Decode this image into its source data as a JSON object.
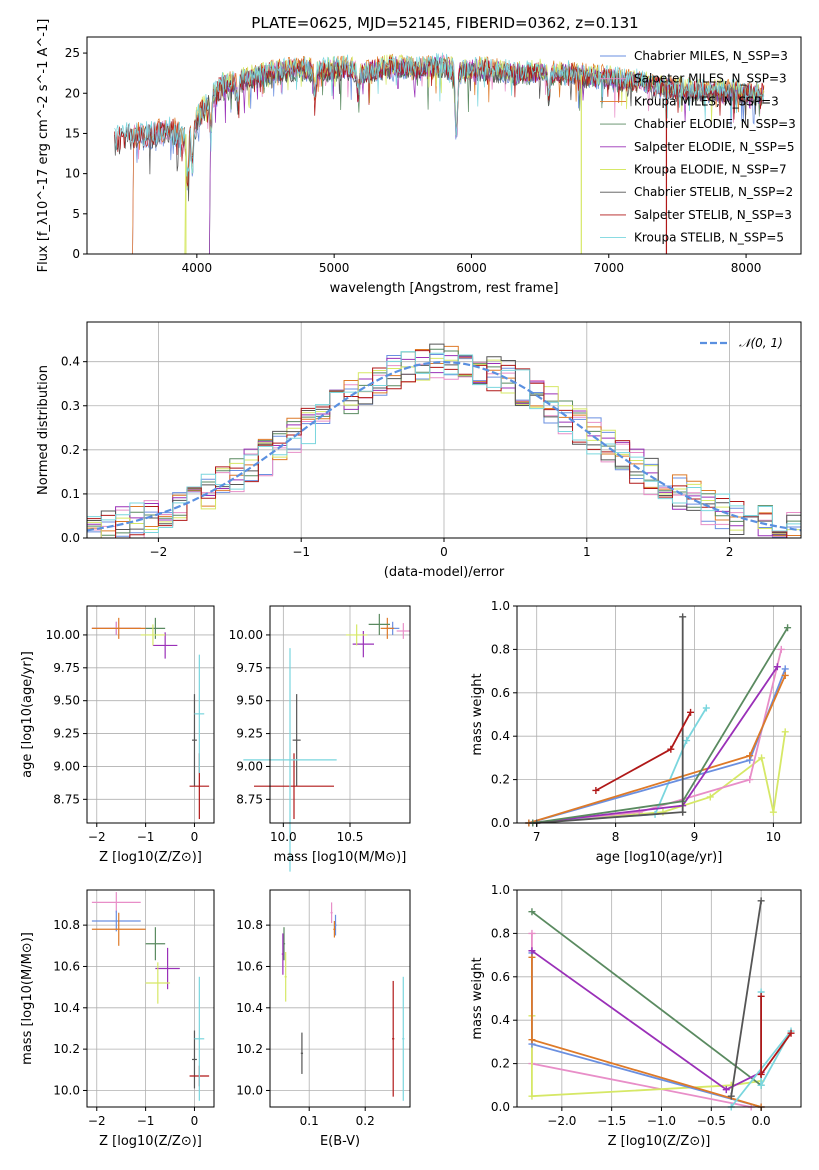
{
  "colors": {
    "chabrier_miles": "#6a8fe0",
    "salpeter_miles": "#e88ec8",
    "kroupa_miles": "#de7a28",
    "chabrier_elodie": "#5a8a60",
    "salpeter_elodie": "#9a30b8",
    "kroupa_elodie": "#d6e866",
    "chabrier_stelib": "#555555",
    "salpeter_stelib": "#b01818",
    "kroupa_stelib": "#7ad6de",
    "normal_curve": "#5a90e0",
    "grid": "#b0b0b0"
  },
  "chart_data": [
    {
      "id": "spectrum",
      "type": "line",
      "title": "PLATE=0625, MJD=52145, FIBERID=0362, z=0.131",
      "xlabel": "wavelength [Angstrom, rest frame]",
      "ylabel": "Flux [f_λ10^-17 erg cm^-2 s^-1 A^-1]",
      "xlim": [
        3200,
        8400
      ],
      "ylim": [
        0,
        27
      ],
      "xticks": [
        4000,
        5000,
        6000,
        7000,
        8000
      ],
      "yticks": [
        0,
        5,
        10,
        15,
        20,
        25
      ],
      "grid": false,
      "legend": "upper right",
      "series": [
        {
          "name": "Chabrier MILES, N_SSP=3",
          "color_key": "chabrier_miles",
          "start": 3540
        },
        {
          "name": "Salpeter MILES, N_SSP=3",
          "color_key": "salpeter_miles",
          "start": 3540
        },
        {
          "name": "Kroupa MILES, N_SSP=3",
          "color_key": "kroupa_miles",
          "start": 3540
        },
        {
          "name": "Chabrier ELODIE, N_SSP=3",
          "color_key": "chabrier_elodie",
          "start": 4100
        },
        {
          "name": "Salpeter ELODIE, N_SSP=5",
          "color_key": "salpeter_elodie",
          "start": 4100
        },
        {
          "name": "Kroupa ELODIE, N_SSP=7",
          "color_key": "kroupa_elodie",
          "start": 3920
        },
        {
          "name": "Chabrier STELIB, N_SSP=2",
          "color_key": "chabrier_stelib",
          "start": 3400
        },
        {
          "name": "Salpeter STELIB, N_SSP=3",
          "color_key": "salpeter_stelib",
          "start": 3400
        },
        {
          "name": "Kroupa STELIB, N_SSP=5",
          "color_key": "kroupa_stelib",
          "start": 3400
        }
      ],
      "continuum": [
        [
          3400,
          14.0
        ],
        [
          3500,
          14.8
        ],
        [
          3600,
          14.5
        ],
        [
          3700,
          15.0
        ],
        [
          3800,
          15.5
        ],
        [
          3900,
          14.5
        ],
        [
          4000,
          16.5
        ],
        [
          4100,
          19.5
        ],
        [
          4200,
          21.0
        ],
        [
          4300,
          21.5
        ],
        [
          4400,
          22.0
        ],
        [
          4500,
          22.5
        ],
        [
          4600,
          22.8
        ],
        [
          4700,
          23.0
        ],
        [
          4800,
          23.0
        ],
        [
          4900,
          22.8
        ],
        [
          5000,
          23.0
        ],
        [
          5100,
          23.2
        ],
        [
          5200,
          22.5
        ],
        [
          5300,
          23.0
        ],
        [
          5400,
          23.3
        ],
        [
          5500,
          23.3
        ],
        [
          5600,
          23.0
        ],
        [
          5700,
          23.3
        ],
        [
          5800,
          23.5
        ],
        [
          5900,
          22.5
        ],
        [
          6000,
          23.0
        ],
        [
          6100,
          23.0
        ],
        [
          6200,
          22.8
        ],
        [
          6300,
          22.5
        ],
        [
          6400,
          22.5
        ],
        [
          6500,
          22.7
        ],
        [
          6600,
          22.5
        ],
        [
          6700,
          22.6
        ],
        [
          6800,
          22.3
        ],
        [
          6900,
          22.0
        ],
        [
          7000,
          22.0
        ],
        [
          7100,
          21.5
        ],
        [
          7200,
          21.5
        ],
        [
          7300,
          21.0
        ],
        [
          7400,
          20.8
        ],
        [
          7500,
          20.5
        ],
        [
          7600,
          20.3
        ],
        [
          7700,
          20.3
        ],
        [
          7800,
          20.2
        ],
        [
          7900,
          20.2
        ],
        [
          8000,
          20.0
        ],
        [
          8100,
          20.0
        ],
        [
          8130,
          20.0
        ]
      ],
      "absorption_lines": [
        [
          3933,
          -6
        ],
        [
          3968,
          -5
        ],
        [
          4102,
          -4
        ],
        [
          4300,
          -3
        ],
        [
          4861,
          -3
        ],
        [
          5175,
          -3
        ],
        [
          5890,
          -8
        ],
        [
          6563,
          -3
        ]
      ],
      "cutoffs": [
        {
          "color_key": "kroupa_elodie",
          "x": 3920
        },
        {
          "color_key": "kroupa_elodie",
          "x": 6800
        },
        {
          "color_key": "salpeter_stelib",
          "x": 7420
        }
      ]
    },
    {
      "id": "residuals",
      "type": "histogram",
      "xlabel": "(data-model)/error",
      "ylabel": "Normed distribution",
      "xlim": [
        -2.5,
        2.5
      ],
      "ylim": [
        0,
        0.49
      ],
      "xticks": [
        -2,
        -1,
        0,
        1,
        2
      ],
      "yticks": [
        0.0,
        0.1,
        0.2,
        0.3,
        0.4
      ],
      "grid": true,
      "legend": "upper right",
      "reference_curve": {
        "name": "𝒩(0, 1)",
        "mean": 0,
        "sigma": 1
      },
      "bin_width": 0.1,
      "bin_start": -2.5,
      "series_order": [
        "chabrier_miles",
        "salpeter_miles",
        "kroupa_miles",
        "chabrier_elodie",
        "salpeter_elodie",
        "kroupa_elodie",
        "chabrier_stelib",
        "salpeter_stelib",
        "kroupa_stelib"
      ]
    },
    {
      "id": "age_vs_z",
      "type": "errorbar",
      "xlabel": "Z [log10(Z/Z⊙)]",
      "ylabel": "age [log10(age/yr)]",
      "xlim": [
        -2.2,
        0.4
      ],
      "ylim": [
        8.57,
        10.22
      ],
      "xticks": [
        -2,
        -1,
        0
      ],
      "yticks": [
        8.75,
        9.0,
        9.25,
        9.5,
        9.75,
        10.0
      ],
      "grid": true,
      "points": [
        {
          "c": "chabrier_miles",
          "x": -1.6,
          "xerr": 0.5,
          "y": 10.05,
          "yerr": 0.05
        },
        {
          "c": "salpeter_miles",
          "x": -1.6,
          "xerr": 0.5,
          "y": 10.05,
          "yerr": 0.05
        },
        {
          "c": "kroupa_miles",
          "x": -1.55,
          "xerr": 0.55,
          "y": 10.05,
          "yerr": 0.08
        },
        {
          "c": "chabrier_elodie",
          "x": -0.8,
          "xerr": 0.2,
          "y": 10.05,
          "yerr": 0.08
        },
        {
          "c": "salpeter_elodie",
          "x": -0.6,
          "xerr": 0.25,
          "y": 9.92,
          "yerr": 0.1
        },
        {
          "c": "kroupa_elodie",
          "x": -0.85,
          "xerr": 0.25,
          "y": 10.0,
          "yerr": 0.08
        },
        {
          "c": "chabrier_stelib",
          "x": 0.0,
          "xerr": 0.05,
          "y": 9.2,
          "yerr": 0.35
        },
        {
          "c": "salpeter_stelib",
          "x": 0.1,
          "xerr": 0.2,
          "y": 8.85,
          "yerr": 0.25
        },
        {
          "c": "kroupa_stelib",
          "x": 0.1,
          "xerr": 0.1,
          "y": 9.4,
          "yerr": 0.45
        }
      ]
    },
    {
      "id": "age_vs_mass",
      "type": "errorbar",
      "xlabel": "mass [log10(M/M⊙)]",
      "ylabel": "",
      "xlim": [
        9.9,
        10.95
      ],
      "ylim": [
        8.57,
        10.22
      ],
      "xticks": [
        10.0,
        10.5
      ],
      "yticks": [
        8.75,
        9.0,
        9.25,
        9.5,
        9.75,
        10.0
      ],
      "grid": true,
      "points": [
        {
          "c": "chabrier_miles",
          "x": 10.82,
          "xerr": 0.05,
          "y": 10.05,
          "yerr": 0.05
        },
        {
          "c": "salpeter_miles",
          "x": 10.9,
          "xerr": 0.05,
          "y": 10.03,
          "yerr": 0.06
        },
        {
          "c": "kroupa_miles",
          "x": 10.78,
          "xerr": 0.05,
          "y": 10.05,
          "yerr": 0.08
        },
        {
          "c": "chabrier_elodie",
          "x": 10.72,
          "xerr": 0.08,
          "y": 10.08,
          "yerr": 0.08
        },
        {
          "c": "salpeter_elodie",
          "x": 10.6,
          "xerr": 0.08,
          "y": 9.93,
          "yerr": 0.1
        },
        {
          "c": "kroupa_elodie",
          "x": 10.55,
          "xerr": 0.08,
          "y": 10.0,
          "yerr": 0.08
        },
        {
          "c": "chabrier_stelib",
          "x": 10.1,
          "xerr": 0.03,
          "y": 9.2,
          "yerr": 0.35
        },
        {
          "c": "salpeter_stelib",
          "x": 10.08,
          "xerr": 0.3,
          "y": 8.85,
          "yerr": 0.25
        },
        {
          "c": "kroupa_stelib",
          "x": 10.05,
          "xerr": 0.35,
          "y": 9.05,
          "yerr": 0.85
        }
      ]
    },
    {
      "id": "massweight_vs_age",
      "type": "line",
      "xlabel": "age [log10(age/yr)]",
      "ylabel": "mass weight",
      "xlim": [
        6.75,
        10.35
      ],
      "ylim": [
        0,
        1.0
      ],
      "xticks": [
        7,
        8,
        9,
        10
      ],
      "yticks": [
        0.0,
        0.2,
        0.4,
        0.6,
        0.8,
        1.0
      ],
      "grid": true,
      "series": [
        {
          "c": "kroupa_elodie",
          "pts": [
            [
              6.9,
              0
            ],
            [
              8.6,
              0.05
            ],
            [
              9.2,
              0.12
            ],
            [
              9.85,
              0.3
            ],
            [
              10.0,
              0.05
            ],
            [
              10.15,
              0.42
            ]
          ]
        },
        {
          "c": "salpeter_miles",
          "pts": [
            [
              6.9,
              0
            ],
            [
              8.3,
              0.05
            ],
            [
              9.7,
              0.2
            ],
            [
              10.1,
              0.8
            ]
          ]
        },
        {
          "c": "kroupa_stelib",
          "pts": [
            [
              6.9,
              0
            ],
            [
              8.5,
              0.04
            ],
            [
              8.9,
              0.38
            ],
            [
              9.15,
              0.53
            ]
          ]
        },
        {
          "c": "chabrier_miles",
          "pts": [
            [
              6.9,
              0
            ],
            [
              9.7,
              0.29
            ],
            [
              10.15,
              0.71
            ]
          ]
        },
        {
          "c": "kroupa_miles",
          "pts": [
            [
              6.9,
              0
            ],
            [
              9.7,
              0.31
            ],
            [
              10.15,
              0.68
            ]
          ]
        },
        {
          "c": "salpeter_elodie",
          "pts": [
            [
              6.95,
              0
            ],
            [
              8.85,
              0.08
            ],
            [
              10.05,
              0.72
            ]
          ]
        },
        {
          "c": "chabrier_elodie",
          "pts": [
            [
              6.95,
              0
            ],
            [
              8.85,
              0.1
            ],
            [
              10.18,
              0.9
            ]
          ]
        },
        {
          "c": "chabrier_stelib",
          "pts": [
            [
              7.0,
              0
            ],
            [
              8.85,
              0.05
            ],
            [
              8.85,
              0.05
            ],
            [
              8.85,
              0.95
            ]
          ]
        },
        {
          "c": "salpeter_stelib",
          "pts": [
            [
              7.75,
              0.15
            ],
            [
              8.7,
              0.34
            ],
            [
              8.95,
              0.51
            ]
          ]
        }
      ]
    },
    {
      "id": "mass_vs_z",
      "type": "errorbar",
      "xlabel": "Z [log10(Z/Z⊙)]",
      "ylabel": "mass [log10(M/M⊙)]",
      "xlim": [
        -2.2,
        0.4
      ],
      "ylim": [
        9.92,
        10.97
      ],
      "xticks": [
        -2,
        -1,
        0
      ],
      "yticks": [
        10.0,
        10.2,
        10.4,
        10.6,
        10.8
      ],
      "grid": true,
      "points": [
        {
          "c": "salpeter_miles",
          "x": -1.6,
          "xerr": 0.5,
          "y": 10.91,
          "yerr": 0.05
        },
        {
          "c": "chabrier_miles",
          "x": -1.6,
          "xerr": 0.5,
          "y": 10.82,
          "yerr": 0.05
        },
        {
          "c": "kroupa_miles",
          "x": -1.55,
          "xerr": 0.55,
          "y": 10.78,
          "yerr": 0.08
        },
        {
          "c": "chabrier_elodie",
          "x": -0.8,
          "xerr": 0.2,
          "y": 10.71,
          "yerr": 0.08
        },
        {
          "c": "salpeter_elodie",
          "x": -0.55,
          "xerr": 0.25,
          "y": 10.59,
          "yerr": 0.1
        },
        {
          "c": "kroupa_elodie",
          "x": -0.75,
          "xerr": 0.25,
          "y": 10.52,
          "yerr": 0.1
        },
        {
          "c": "chabrier_stelib",
          "x": 0.0,
          "xerr": 0.05,
          "y": 10.15,
          "yerr": 0.14
        },
        {
          "c": "salpeter_stelib",
          "x": 0.1,
          "xerr": 0.2,
          "y": 10.07,
          "yerr": 0.05
        },
        {
          "c": "kroupa_stelib",
          "x": 0.1,
          "xerr": 0.1,
          "y": 10.25,
          "yerr": 0.3
        }
      ]
    },
    {
      "id": "mass_vs_ebv",
      "type": "errorbar",
      "xlabel": "E(B-V)",
      "ylabel": "",
      "xlim": [
        0.03,
        0.28
      ],
      "ylim": [
        9.92,
        10.97
      ],
      "xticks": [
        0.1,
        0.2
      ],
      "yticks": [
        10.0,
        10.2,
        10.4,
        10.6,
        10.8
      ],
      "grid": true,
      "points": [
        {
          "c": "salpeter_miles",
          "x": 0.14,
          "xerr": 0.002,
          "y": 10.86,
          "yerr": 0.05
        },
        {
          "c": "chabrier_miles",
          "x": 0.147,
          "xerr": 0.002,
          "y": 10.8,
          "yerr": 0.05
        },
        {
          "c": "kroupa_miles",
          "x": 0.145,
          "xerr": 0.002,
          "y": 10.78,
          "yerr": 0.04
        },
        {
          "c": "chabrier_elodie",
          "x": 0.055,
          "xerr": 0.002,
          "y": 10.71,
          "yerr": 0.08
        },
        {
          "c": "salpeter_elodie",
          "x": 0.053,
          "xerr": 0.002,
          "y": 10.66,
          "yerr": 0.1
        },
        {
          "c": "kroupa_elodie",
          "x": 0.058,
          "xerr": 0.002,
          "y": 10.55,
          "yerr": 0.12
        },
        {
          "c": "chabrier_stelib",
          "x": 0.087,
          "xerr": 0.002,
          "y": 10.18,
          "yerr": 0.1
        },
        {
          "c": "salpeter_stelib",
          "x": 0.25,
          "xerr": 0.002,
          "y": 10.25,
          "yerr": 0.28
        },
        {
          "c": "kroupa_stelib",
          "x": 0.268,
          "xerr": 0.002,
          "y": 10.25,
          "yerr": 0.3
        }
      ]
    },
    {
      "id": "massweight_vs_z",
      "type": "line",
      "xlabel": "Z [log10(Z/Z⊙)]",
      "ylabel": "mass weight",
      "xlim": [
        -2.45,
        0.4
      ],
      "ylim": [
        0,
        1.0
      ],
      "xticks": [
        -2.0,
        -1.5,
        -1.0,
        -0.5,
        0.0
      ],
      "yticks": [
        0.0,
        0.2,
        0.4,
        0.6,
        0.8,
        1.0
      ],
      "grid": true,
      "series": [
        {
          "c": "salpeter_miles",
          "pts": [
            [
              -2.3,
              0.8
            ],
            [
              -2.3,
              0.2
            ],
            [
              -0.1,
              0.0
            ]
          ]
        },
        {
          "c": "kroupa_elodie",
          "pts": [
            [
              -2.3,
              0.42
            ],
            [
              -2.3,
              0.05
            ],
            [
              -0.3,
              0.1
            ],
            [
              0.0,
              0.12
            ]
          ]
        },
        {
          "c": "chabrier_miles",
          "pts": [
            [
              -2.3,
              0.71
            ],
            [
              -2.3,
              0.29
            ],
            [
              0.0,
              0.0
            ]
          ]
        },
        {
          "c": "kroupa_miles",
          "pts": [
            [
              -2.3,
              0.69
            ],
            [
              -2.3,
              0.31
            ],
            [
              0.0,
              0.0
            ]
          ]
        },
        {
          "c": "chabrier_elodie",
          "pts": [
            [
              -2.3,
              0.9
            ],
            [
              0.0,
              0.1
            ]
          ]
        },
        {
          "c": "salpeter_elodie",
          "pts": [
            [
              -2.3,
              0.72
            ],
            [
              -0.35,
              0.08
            ],
            [
              0.0,
              0.16
            ]
          ]
        },
        {
          "c": "kroupa_stelib",
          "pts": [
            [
              0.0,
              0.53
            ],
            [
              0.0,
              0.1
            ],
            [
              0.3,
              0.35
            ],
            [
              -0.3,
              0.0
            ]
          ]
        },
        {
          "c": "salpeter_stelib",
          "pts": [
            [
              0.0,
              0.51
            ],
            [
              0.0,
              0.15
            ],
            [
              0.3,
              0.34
            ]
          ]
        },
        {
          "c": "chabrier_stelib",
          "pts": [
            [
              0.0,
              0.95
            ],
            [
              -0.3,
              0.05
            ]
          ]
        }
      ]
    }
  ]
}
